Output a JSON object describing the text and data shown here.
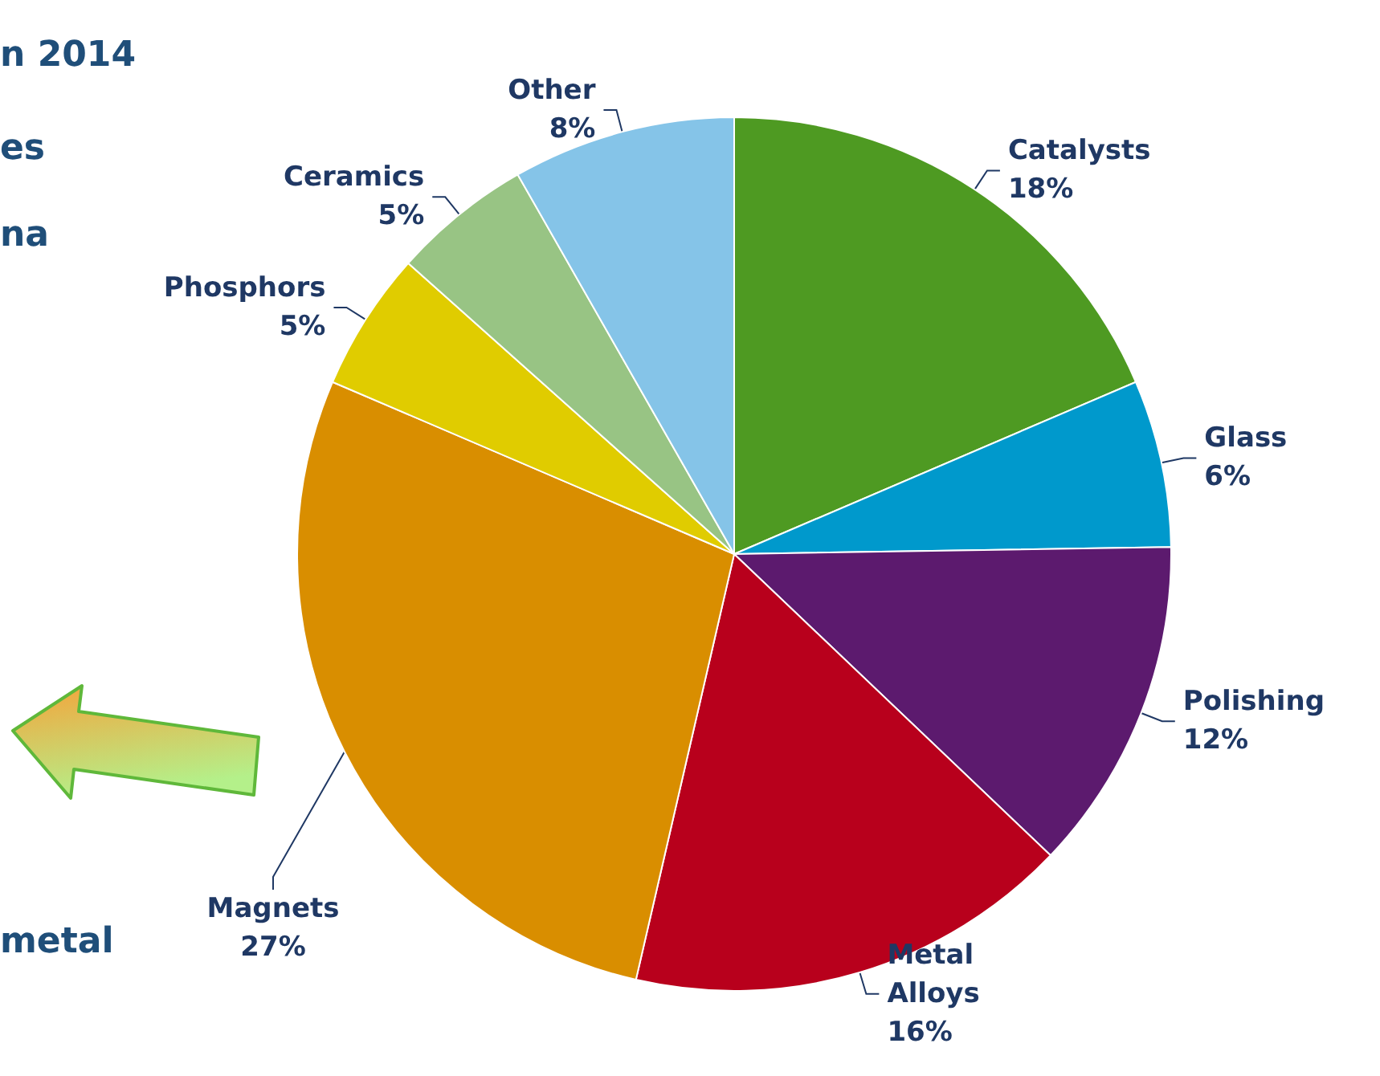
{
  "chart_data": {
    "type": "pie",
    "categories": [
      "Catalysts",
      "Glass",
      "Polishing",
      "Metal\nAlloys",
      "Magnets",
      "Phosphors",
      "Ceramics",
      "Other"
    ],
    "values": [
      18,
      6,
      12,
      16,
      27,
      5,
      5,
      8
    ],
    "colors": [
      "#4e9a22",
      "#0099cc",
      "#5c1a6e",
      "#b8001c",
      "#d98e00",
      "#e0cc00",
      "#98c484",
      "#85c4e8"
    ],
    "value_labels": [
      "18%",
      "6%",
      "12%",
      "16%",
      "27%",
      "5%",
      "5%",
      "8%"
    ],
    "annotations": [
      "n 2014",
      "es",
      "na",
      "metal"
    ]
  }
}
